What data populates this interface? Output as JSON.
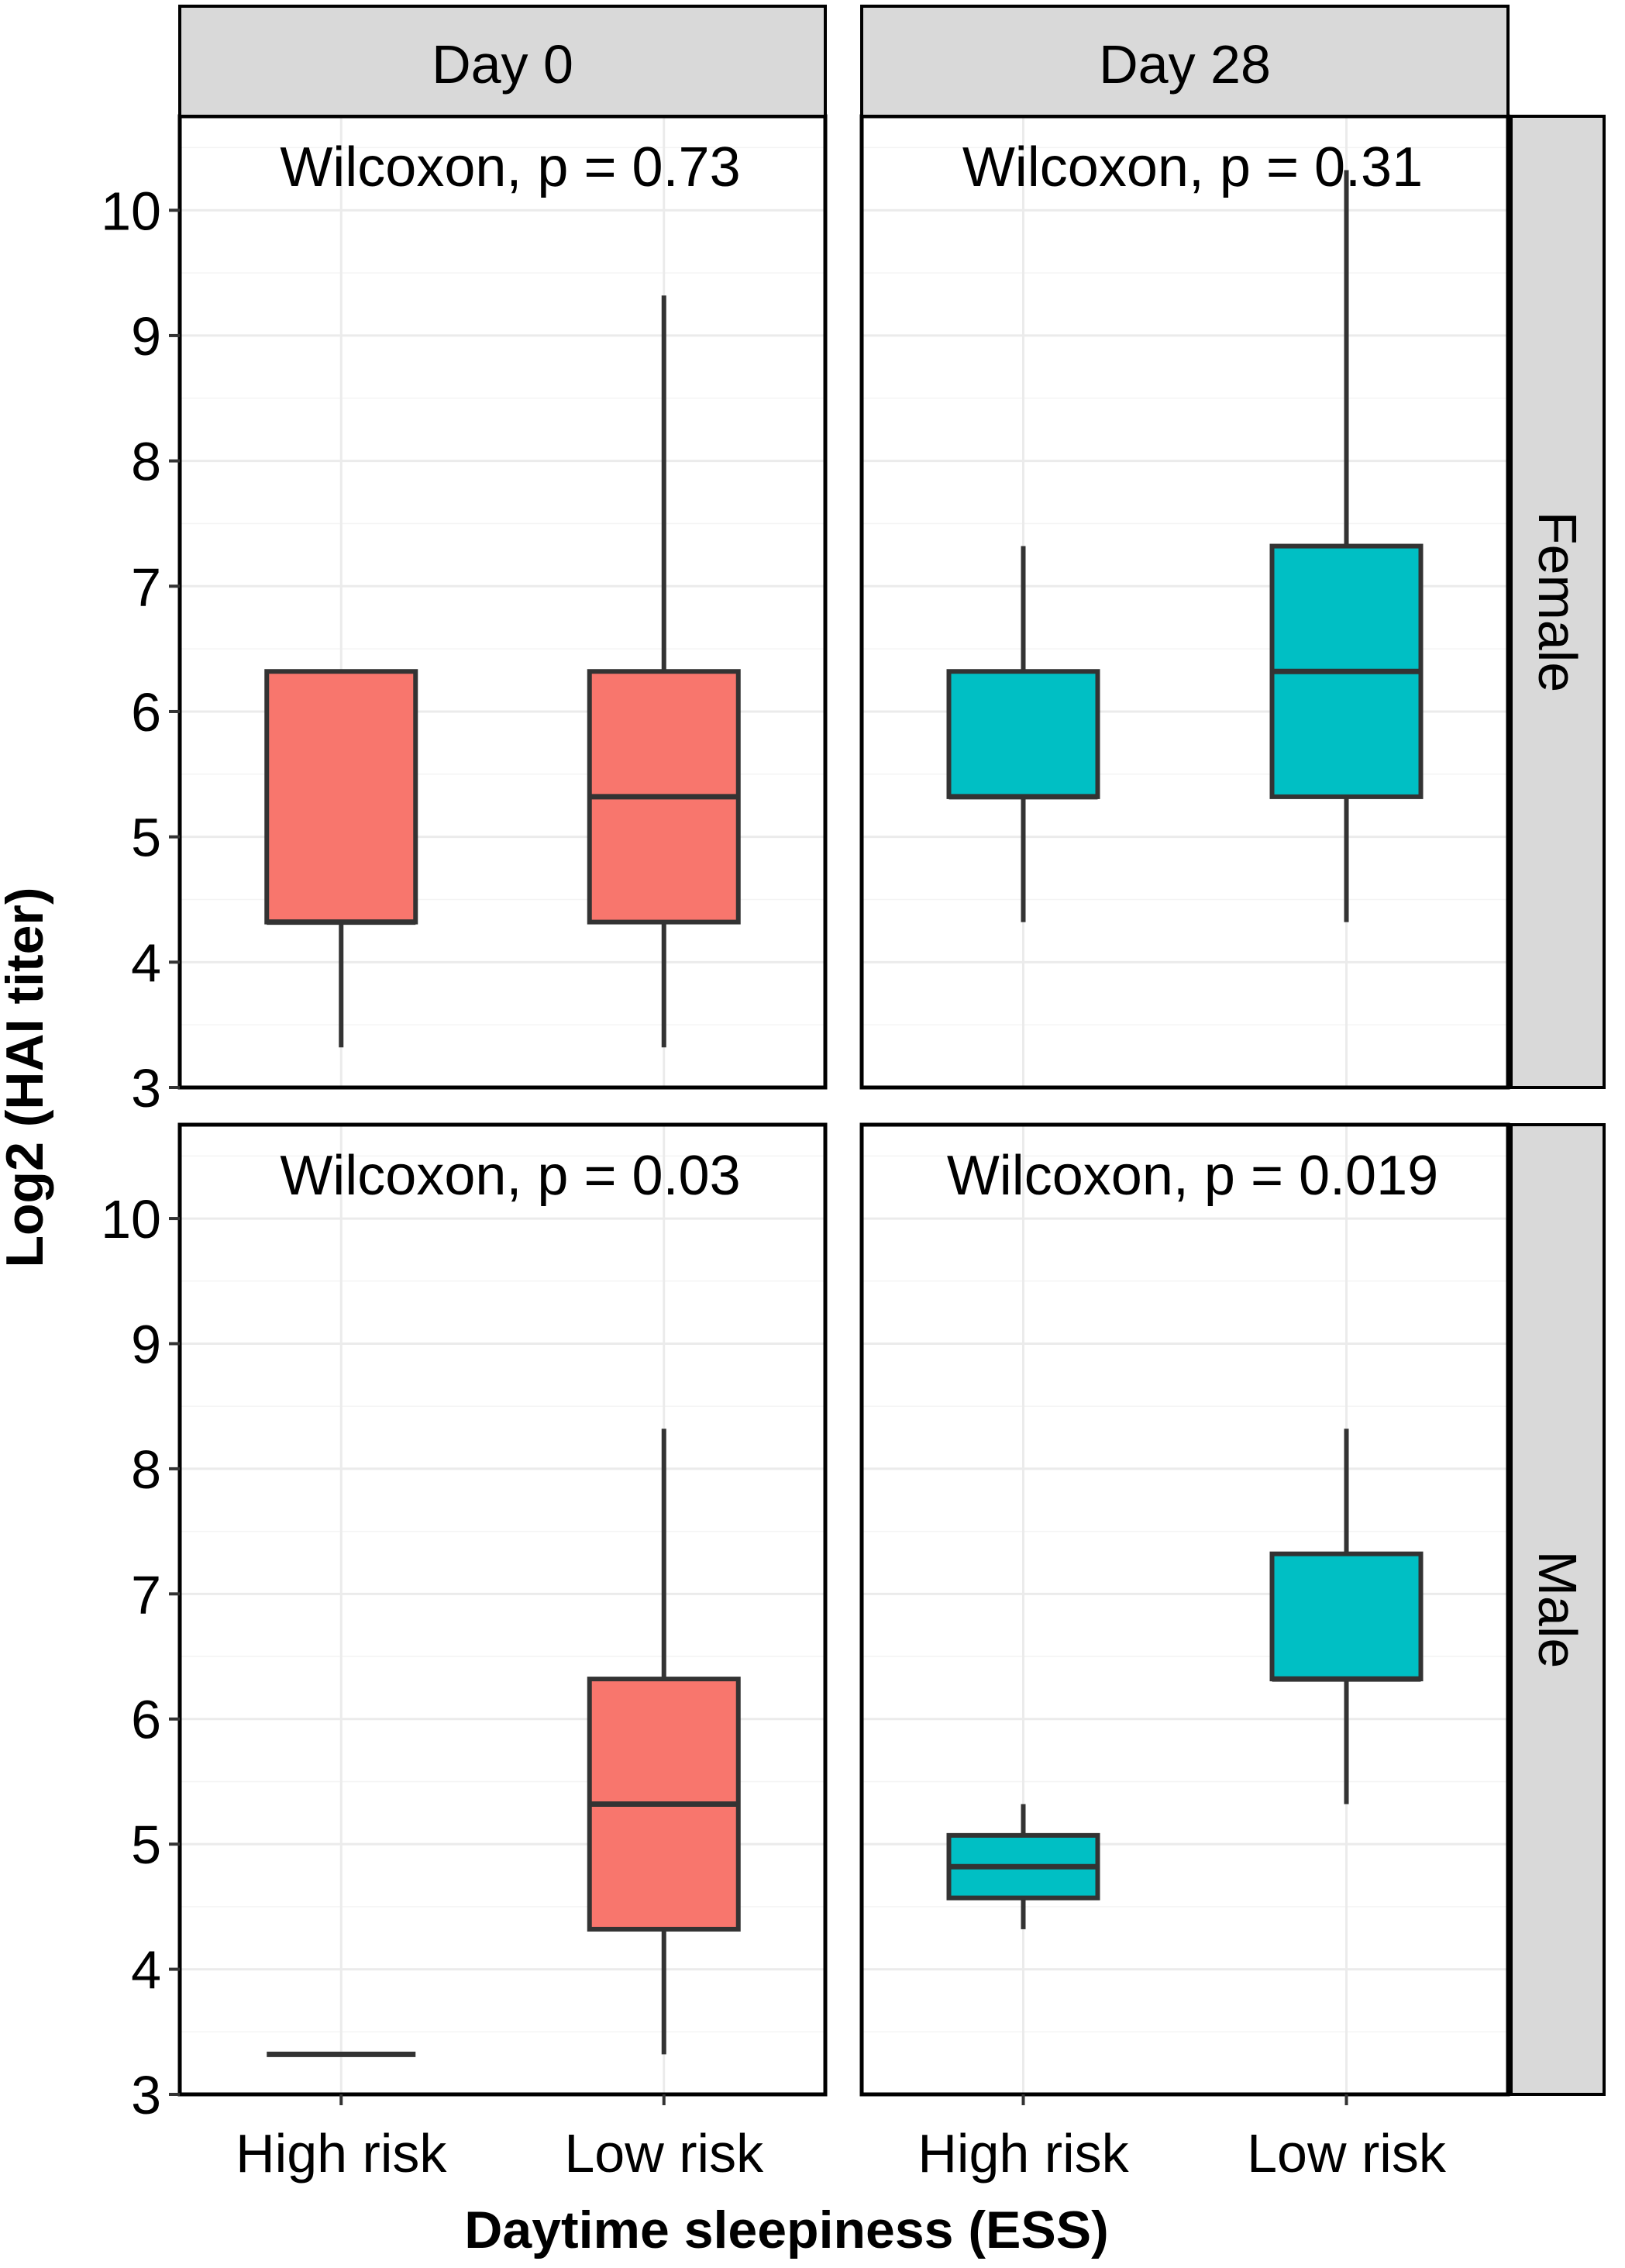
{
  "chart_data": {
    "type": "boxplot",
    "xlabel": "Daytime sleepiness (ESS)",
    "ylabel": "Log2 (HAI titer)",
    "ylim": [
      3,
      10.75
    ],
    "yticks": [
      3,
      4,
      5,
      6,
      7,
      8,
      9,
      10
    ],
    "categories": [
      "High risk",
      "Low risk"
    ],
    "columns": [
      "Day 0",
      "Day 28"
    ],
    "rows": [
      "Female",
      "Male"
    ],
    "colors": {
      "Day 0": "#f8766d",
      "Day 28": "#00bfc4"
    },
    "panels": [
      {
        "column": "Day 0",
        "row": "Female",
        "annotation": "Wilcoxon, p = 0.73",
        "boxes": [
          {
            "category": "High risk",
            "min": 3.32,
            "q1": 4.32,
            "median": 4.32,
            "q3": 6.32,
            "max": 6.32
          },
          {
            "category": "Low risk",
            "min": 3.32,
            "q1": 4.32,
            "median": 5.32,
            "q3": 6.32,
            "max": 9.32
          }
        ]
      },
      {
        "column": "Day 28",
        "row": "Female",
        "annotation": "Wilcoxon, p = 0.31",
        "boxes": [
          {
            "category": "High risk",
            "min": 4.32,
            "q1": 5.32,
            "median": 5.32,
            "q3": 6.32,
            "max": 7.32
          },
          {
            "category": "Low risk",
            "min": 4.32,
            "q1": 5.32,
            "median": 6.32,
            "q3": 7.32,
            "max": 10.32
          }
        ]
      },
      {
        "column": "Day 0",
        "row": "Male",
        "annotation": "Wilcoxon, p = 0.03",
        "boxes": [
          {
            "category": "High risk",
            "min": 3.32,
            "q1": 3.32,
            "median": 3.32,
            "q3": 3.32,
            "max": 3.32
          },
          {
            "category": "Low risk",
            "min": 3.32,
            "q1": 4.32,
            "median": 5.32,
            "q3": 6.32,
            "max": 8.32
          }
        ]
      },
      {
        "column": "Day 28",
        "row": "Male",
        "annotation": "Wilcoxon, p = 0.019",
        "boxes": [
          {
            "category": "High risk",
            "min": 4.32,
            "q1": 4.57,
            "median": 4.82,
            "q3": 5.07,
            "max": 5.32
          },
          {
            "category": "Low risk",
            "min": 5.32,
            "q1": 6.32,
            "median": 6.32,
            "q3": 7.32,
            "max": 8.32
          }
        ]
      }
    ]
  }
}
